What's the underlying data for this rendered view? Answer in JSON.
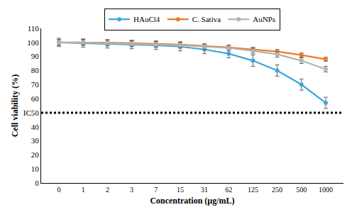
{
  "chart_data": {
    "type": "line",
    "x_label": "Concentration (µg/mL)",
    "y_label": "Cell viability (%)",
    "categories": [
      "0",
      "1",
      "2",
      "3",
      "7",
      "15",
      "31",
      "62",
      "125",
      "250",
      "500",
      "1000"
    ],
    "series": [
      {
        "name": "HAuCl4",
        "color": "#3ea6dd",
        "marker": "circle",
        "values": [
          100,
          99.5,
          99,
          98.5,
          98,
          97,
          95,
          92,
          87,
          80,
          70,
          57
        ],
        "errors": [
          3,
          3,
          3,
          3,
          3,
          3,
          3,
          3,
          4,
          4,
          4,
          4
        ]
      },
      {
        "name": "C. Sativa",
        "color": "#f07a22",
        "marker": "circle",
        "values": [
          100,
          100,
          99.8,
          99.5,
          99,
          98.5,
          97.5,
          96.5,
          95,
          93.5,
          91,
          88
        ],
        "errors": [
          2,
          2,
          2,
          2,
          2,
          2,
          1.5,
          1.5,
          1.5,
          1.5,
          1.5,
          1.5
        ]
      },
      {
        "name": "AuNPs",
        "color": "#b3b3b3",
        "marker": "circle",
        "values": [
          100,
          100,
          99.5,
          99,
          98.5,
          98,
          97,
          96,
          94,
          91.5,
          87,
          81
        ],
        "errors": [
          2,
          2,
          2,
          2,
          2,
          2,
          2,
          2,
          2,
          2,
          2,
          2
        ]
      }
    ],
    "ylim": [
      0,
      110
    ],
    "yticks": [
      0,
      10,
      20,
      30,
      40,
      {
        "value": 50,
        "label": "IC50"
      },
      60,
      70,
      80,
      90,
      100,
      110
    ],
    "threshold": {
      "value": 50,
      "line_style": "dotted"
    },
    "grid": false,
    "legend": "top"
  }
}
